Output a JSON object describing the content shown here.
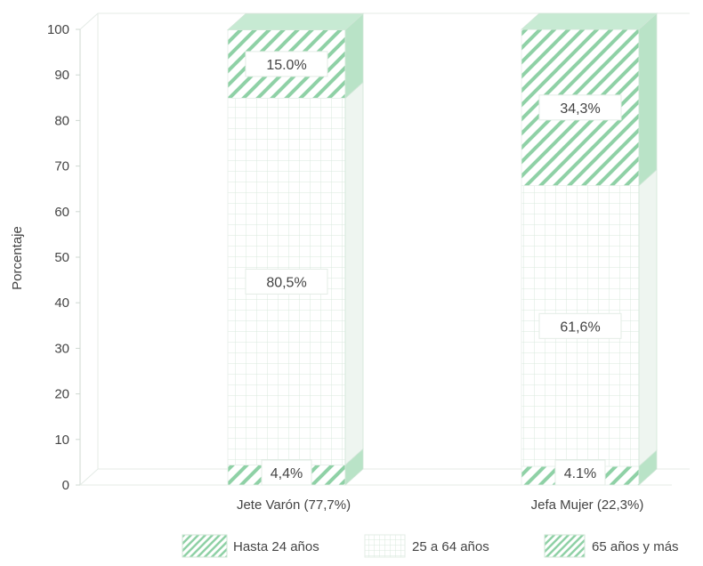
{
  "chart_data": {
    "type": "bar",
    "stacked": true,
    "ylabel": "Porcentaje",
    "ylim": [
      0,
      100
    ],
    "yticks": [
      0,
      10,
      20,
      30,
      40,
      50,
      60,
      70,
      80,
      90,
      100
    ],
    "ytick_labels": [
      "0",
      "10",
      "20",
      "30",
      "40",
      "50",
      "60",
      "70",
      "80",
      "90",
      "100"
    ],
    "categories": [
      "Jete Varón (77,7%)",
      "Jefa Mujer (22,3%)"
    ],
    "series": [
      {
        "name": "Hasta 24 años",
        "values": [
          4.4,
          4.1
        ],
        "labels": [
          "4,4%",
          "4.1%"
        ]
      },
      {
        "name": "25 a 64 años",
        "values": [
          80.5,
          61.6
        ],
        "labels": [
          "80,5%",
          "61,6%"
        ]
      },
      {
        "name": "65 años y más",
        "values": [
          15.0,
          34.3
        ],
        "labels": [
          "15.0%",
          "34,3%"
        ]
      }
    ],
    "grid": true,
    "legend_position": "bottom",
    "colors": {
      "pattern": "#8fd1a6",
      "grid_pattern": "#d9e8dd",
      "frame": "#cfe6d6",
      "text": "#444444"
    }
  }
}
